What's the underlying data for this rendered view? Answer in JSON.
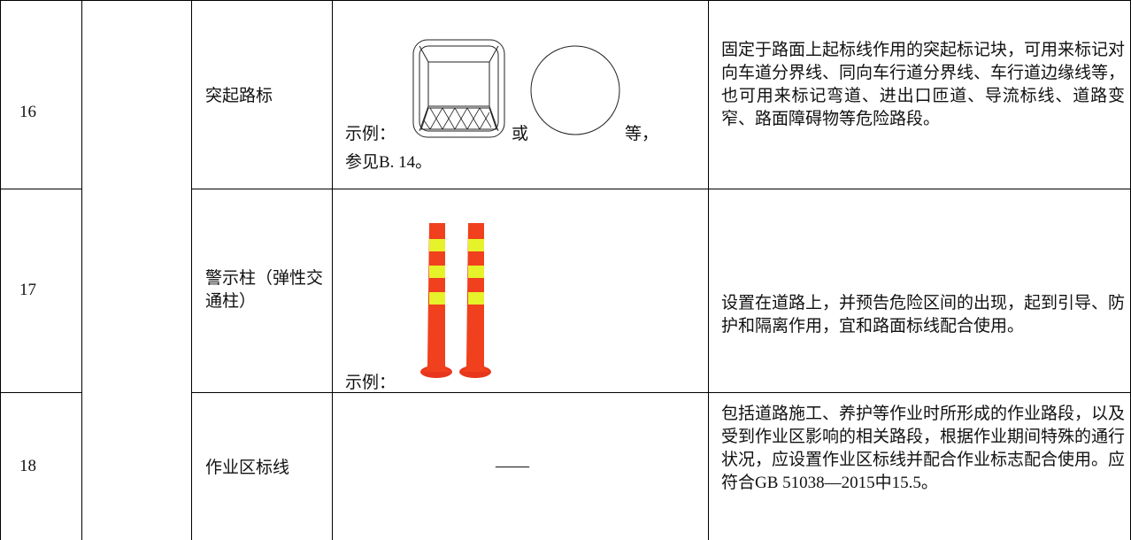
{
  "table": {
    "rows": [
      {
        "no": "16",
        "name": "突起路标",
        "example": {
          "parts": [
            "示例：",
            "或",
            "等，"
          ],
          "note": "参见B. 14。"
        },
        "description": "固定于路面上起标线作用的突起标记块，可用来标记对向车道分界线、同向车行道分界线、车行道边缘线等，也可用来标记弯道、进出口匝道、导流标线、道路变窄、路面障碍物等危险路段。"
      },
      {
        "no": "17",
        "name": "警示柱（弹性交通柱）",
        "example": {
          "parts": [
            "示例："
          ]
        },
        "description": "设置在道路上，并预告危险区间的出现，起到引导、防护和隔离作用，宜和路面标线配合使用。"
      },
      {
        "no": "18",
        "name": "作业区标线",
        "example": {
          "text": "——"
        },
        "description": "包括道路施工、养护等作业时所形成的作业路段，以及受到作业区影响的相关路段，根据作业期间特殊的通行状况，应设置作业区标线并配合作业标志配合使用。应符合GB 51038—2015中15.5。"
      }
    ]
  }
}
